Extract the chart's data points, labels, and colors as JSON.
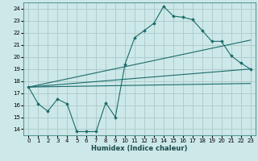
{
  "xlabel": "Humidex (Indice chaleur)",
  "bg_color": "#cde8e8",
  "grid_color": "#b0cccc",
  "line_color": "#1a6b6b",
  "xlim": [
    -0.5,
    23.5
  ],
  "ylim": [
    13.5,
    24.5
  ],
  "yticks": [
    14,
    15,
    16,
    17,
    18,
    19,
    20,
    21,
    22,
    23,
    24
  ],
  "xticks": [
    0,
    1,
    2,
    3,
    4,
    5,
    6,
    7,
    8,
    9,
    10,
    11,
    12,
    13,
    14,
    15,
    16,
    17,
    18,
    19,
    20,
    21,
    22,
    23
  ],
  "curve1_x": [
    0,
    1,
    2,
    3,
    4,
    5,
    6,
    7,
    8,
    9,
    10,
    11,
    12,
    13,
    14,
    15,
    16,
    17,
    18,
    19,
    20,
    21,
    22,
    23
  ],
  "curve1_y": [
    17.5,
    16.1,
    15.5,
    16.5,
    16.1,
    13.8,
    13.8,
    13.8,
    16.2,
    15.0,
    19.4,
    21.6,
    22.2,
    22.8,
    24.2,
    23.4,
    23.3,
    23.1,
    22.2,
    21.3,
    21.3,
    20.1,
    19.5,
    19.0
  ],
  "curve2_x": [
    0,
    23
  ],
  "curve2_y": [
    17.5,
    19.0
  ],
  "curve3_x": [
    0,
    23
  ],
  "curve3_y": [
    17.5,
    21.4
  ],
  "curve4_x": [
    0,
    23
  ],
  "curve4_y": [
    17.5,
    17.8
  ]
}
